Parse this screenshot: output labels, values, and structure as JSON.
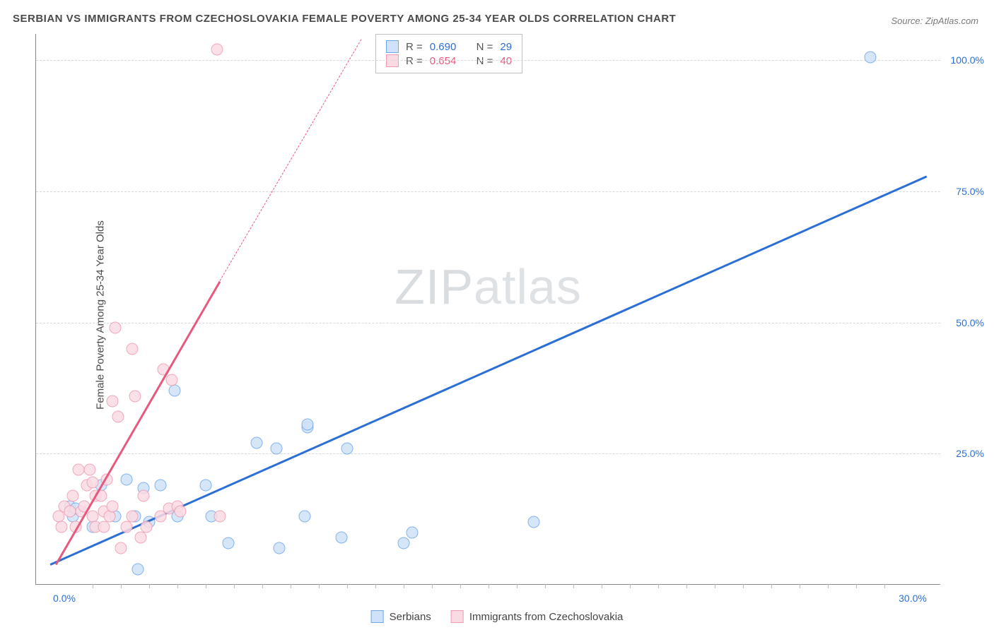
{
  "title": "SERBIAN VS IMMIGRANTS FROM CZECHOSLOVAKIA FEMALE POVERTY AMONG 25-34 YEAR OLDS CORRELATION CHART",
  "source": "Source: ZipAtlas.com",
  "ylabel": "Female Poverty Among 25-34 Year Olds",
  "watermark_a": "ZIP",
  "watermark_b": "atlas",
  "chart": {
    "type": "scatter",
    "background_color": "#ffffff",
    "grid_color": "#d8d8d8",
    "xlim": [
      -1,
      31
    ],
    "ylim": [
      0,
      105
    ],
    "xticks": [
      {
        "v": 0,
        "label": "0.0%",
        "color": "#2b6fd6"
      },
      {
        "v": 30,
        "label": "30.0%",
        "color": "#2b6fd6"
      }
    ],
    "yticks": [
      {
        "v": 25,
        "label": "25.0%",
        "color": "#2b6fd6"
      },
      {
        "v": 50,
        "label": "50.0%",
        "color": "#2b6fd6"
      },
      {
        "v": 75,
        "label": "75.0%",
        "color": "#2b6fd6"
      },
      {
        "v": 100,
        "label": "100.0%",
        "color": "#2b6fd6"
      }
    ],
    "x_minor_ticks": [
      1,
      2,
      3,
      4,
      5,
      6,
      7,
      8,
      9,
      10,
      11,
      12,
      13,
      14,
      15,
      16,
      17,
      18,
      19,
      20,
      21,
      22,
      23,
      24,
      25,
      26,
      27,
      28,
      29
    ],
    "series": [
      {
        "name": "Serbians",
        "marker_fill": "#cfe2f9",
        "marker_stroke": "#6fa6e8",
        "line_color": "#2b6fd6",
        "marker_size": 17,
        "R": "0.690",
        "N": "29",
        "trend": {
          "x1": -0.5,
          "y1": 4,
          "x2": 30.5,
          "y2": 78
        },
        "points": [
          {
            "x": 0.2,
            "y": 15
          },
          {
            "x": 0.3,
            "y": 13
          },
          {
            "x": 0.4,
            "y": 14.5
          },
          {
            "x": 1.0,
            "y": 11
          },
          {
            "x": 1.3,
            "y": 19
          },
          {
            "x": 1.8,
            "y": 13
          },
          {
            "x": 2.2,
            "y": 20
          },
          {
            "x": 2.5,
            "y": 13
          },
          {
            "x": 2.6,
            "y": 3
          },
          {
            "x": 2.8,
            "y": 18.5
          },
          {
            "x": 3.0,
            "y": 12
          },
          {
            "x": 3.4,
            "y": 19
          },
          {
            "x": 3.9,
            "y": 37
          },
          {
            "x": 4.0,
            "y": 13
          },
          {
            "x": 5.0,
            "y": 19
          },
          {
            "x": 5.2,
            "y": 13
          },
          {
            "x": 5.8,
            "y": 8
          },
          {
            "x": 6.8,
            "y": 27
          },
          {
            "x": 7.5,
            "y": 26
          },
          {
            "x": 7.6,
            "y": 7
          },
          {
            "x": 8.5,
            "y": 13
          },
          {
            "x": 8.6,
            "y": 30
          },
          {
            "x": 8.6,
            "y": 30.5
          },
          {
            "x": 9.8,
            "y": 9
          },
          {
            "x": 10.0,
            "y": 26
          },
          {
            "x": 12.0,
            "y": 8
          },
          {
            "x": 12.3,
            "y": 10
          },
          {
            "x": 16.6,
            "y": 12
          },
          {
            "x": 28.5,
            "y": 100.5
          }
        ]
      },
      {
        "name": "Immigrants from Czechoslovakia",
        "marker_fill": "#fbdbe3",
        "marker_stroke": "#ef9ab0",
        "line_color": "#e85a7c",
        "marker_size": 17,
        "R": "0.654",
        "N": "40",
        "trend_solid": {
          "x1": -0.3,
          "y1": 4,
          "x2": 5.5,
          "y2": 58
        },
        "trend_dash": {
          "x1": 5.5,
          "y1": 58,
          "x2": 10.5,
          "y2": 104
        },
        "points": [
          {
            "x": -0.2,
            "y": 13
          },
          {
            "x": -0.1,
            "y": 11
          },
          {
            "x": 0.0,
            "y": 15
          },
          {
            "x": 0.2,
            "y": 14
          },
          {
            "x": 0.3,
            "y": 17
          },
          {
            "x": 0.4,
            "y": 11
          },
          {
            "x": 0.5,
            "y": 22
          },
          {
            "x": 0.6,
            "y": 14
          },
          {
            "x": 0.7,
            "y": 15
          },
          {
            "x": 0.8,
            "y": 19
          },
          {
            "x": 0.9,
            "y": 22
          },
          {
            "x": 1.0,
            "y": 13
          },
          {
            "x": 1.0,
            "y": 19.5
          },
          {
            "x": 1.1,
            "y": 17
          },
          {
            "x": 1.1,
            "y": 11
          },
          {
            "x": 1.3,
            "y": 17
          },
          {
            "x": 1.4,
            "y": 11
          },
          {
            "x": 1.4,
            "y": 14
          },
          {
            "x": 1.5,
            "y": 20
          },
          {
            "x": 1.6,
            "y": 13
          },
          {
            "x": 1.7,
            "y": 15
          },
          {
            "x": 1.7,
            "y": 35
          },
          {
            "x": 1.8,
            "y": 49
          },
          {
            "x": 1.9,
            "y": 32
          },
          {
            "x": 2.0,
            "y": 7
          },
          {
            "x": 2.2,
            "y": 11
          },
          {
            "x": 2.4,
            "y": 13
          },
          {
            "x": 2.4,
            "y": 45
          },
          {
            "x": 2.5,
            "y": 36
          },
          {
            "x": 2.7,
            "y": 9
          },
          {
            "x": 2.8,
            "y": 17
          },
          {
            "x": 2.9,
            "y": 11
          },
          {
            "x": 3.4,
            "y": 13
          },
          {
            "x": 3.5,
            "y": 41
          },
          {
            "x": 3.7,
            "y": 14.5
          },
          {
            "x": 3.8,
            "y": 39
          },
          {
            "x": 4.0,
            "y": 15
          },
          {
            "x": 4.1,
            "y": 14
          },
          {
            "x": 5.4,
            "y": 102
          },
          {
            "x": 5.5,
            "y": 13
          }
        ]
      }
    ]
  },
  "stats_box_labels": {
    "R": "R =",
    "N": "N ="
  },
  "legend": {
    "series1": "Serbians",
    "series2": "Immigrants from Czechoslovakia"
  }
}
